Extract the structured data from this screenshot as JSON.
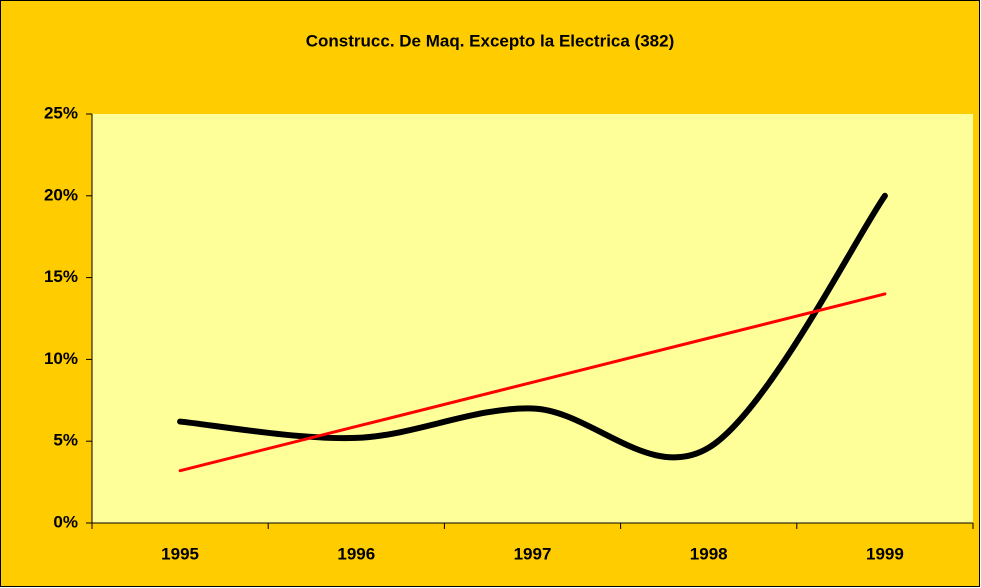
{
  "chart_data": {
    "type": "line",
    "title": "Construcc. De Maq. Excepto la Electrica (382)",
    "categories": [
      "1995",
      "1996",
      "1997",
      "1998",
      "1999"
    ],
    "series": [
      {
        "color": "#000000",
        "values": [
          6.2,
          5.2,
          7.0,
          4.6,
          20.0
        ],
        "smooth": true
      },
      {
        "color": "#ff0000",
        "values": [
          3.2,
          5.9,
          8.6,
          11.3,
          14.0
        ],
        "smooth": false
      }
    ],
    "ylim": [
      0,
      25
    ],
    "yticks": [
      {
        "value": 0,
        "label": "0%"
      },
      {
        "value": 5,
        "label": "5%"
      },
      {
        "value": 10,
        "label": "10%"
      },
      {
        "value": 15,
        "label": "15%"
      },
      {
        "value": 20,
        "label": "20%"
      },
      {
        "value": 25,
        "label": "25%"
      }
    ],
    "grid": false
  }
}
